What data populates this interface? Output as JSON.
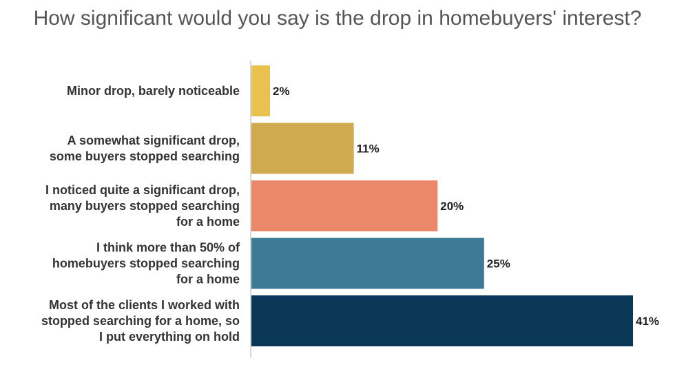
{
  "chart_data": {
    "type": "bar",
    "orientation": "horizontal",
    "title": "How significant would you say is the drop in homebuyers' interest?",
    "categories": [
      [
        "Minor drop, barely noticeable"
      ],
      [
        "A somewhat significant drop,",
        "some buyers stopped searching"
      ],
      [
        "I noticed quite a significant drop,",
        "many buyers stopped searching",
        "for a home"
      ],
      [
        "I think more than 50% of",
        "homebuyers stopped searching",
        "for a home"
      ],
      [
        "Most of the clients I worked with",
        "stopped searching for a home, so",
        "I put everything on hold"
      ]
    ],
    "values": [
      2,
      11,
      20,
      25,
      41
    ],
    "value_labels": [
      "2%",
      "11%",
      "20%",
      "25%",
      "41%"
    ],
    "colors": [
      "#E9C14F",
      "#D0AA4E",
      "#EB886A",
      "#3C7A97",
      "#0A3755"
    ],
    "xlim": [
      0,
      41
    ],
    "xlabel": "",
    "ylabel": "",
    "grid": false,
    "legend": "none"
  }
}
